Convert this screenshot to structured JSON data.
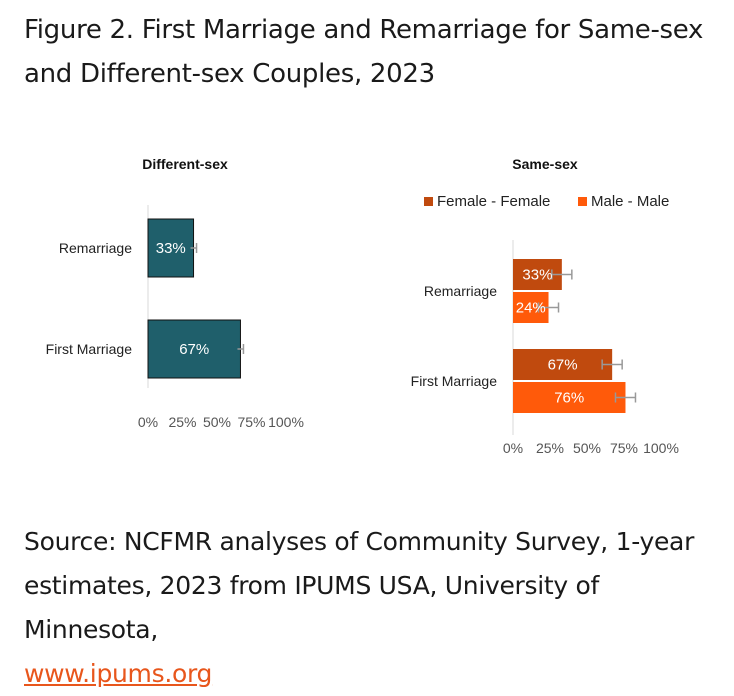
{
  "title": "Figure 2. First Marriage and Remarriage for Same-sex and Different-sex Couples, 2023",
  "source_text": "Source: NCFMR analyses of Community Survey, 1-year estimates, 2023 from IPUMS USA, University of Minnesota,",
  "source_link": "www.ipums.org",
  "colors": {
    "different_sex": "#1f5f6b",
    "female_female": "#c04a0e",
    "male_male": "#ff5a0a",
    "error_bar": "#999999",
    "axis": "#d9d9d9"
  },
  "chart_data": [
    {
      "type": "bar",
      "orientation": "horizontal",
      "title": "Different-sex",
      "categories": [
        "Remarriage",
        "First Marriage"
      ],
      "series": [
        {
          "values": [
            33,
            67
          ],
          "data_labels": [
            "33%",
            "67%"
          ]
        }
      ],
      "xlim": [
        0,
        100
      ],
      "xticks": [
        "0%",
        "25%",
        "50%",
        "75%",
        "100%"
      ],
      "error_bars": true
    },
    {
      "type": "bar",
      "orientation": "horizontal",
      "title": "Same-sex",
      "categories": [
        "Remarriage",
        "First Marriage"
      ],
      "series": [
        {
          "name": "Female - Female",
          "values": [
            33,
            67
          ],
          "data_labels": [
            "33%",
            "67%"
          ]
        },
        {
          "name": "Male - Male",
          "values": [
            24,
            76
          ],
          "data_labels": [
            "24%",
            "76%"
          ]
        }
      ],
      "xlim": [
        0,
        100
      ],
      "xticks": [
        "0%",
        "25%",
        "50%",
        "75%",
        "100%"
      ],
      "legend": "top",
      "error_bars": true
    }
  ]
}
